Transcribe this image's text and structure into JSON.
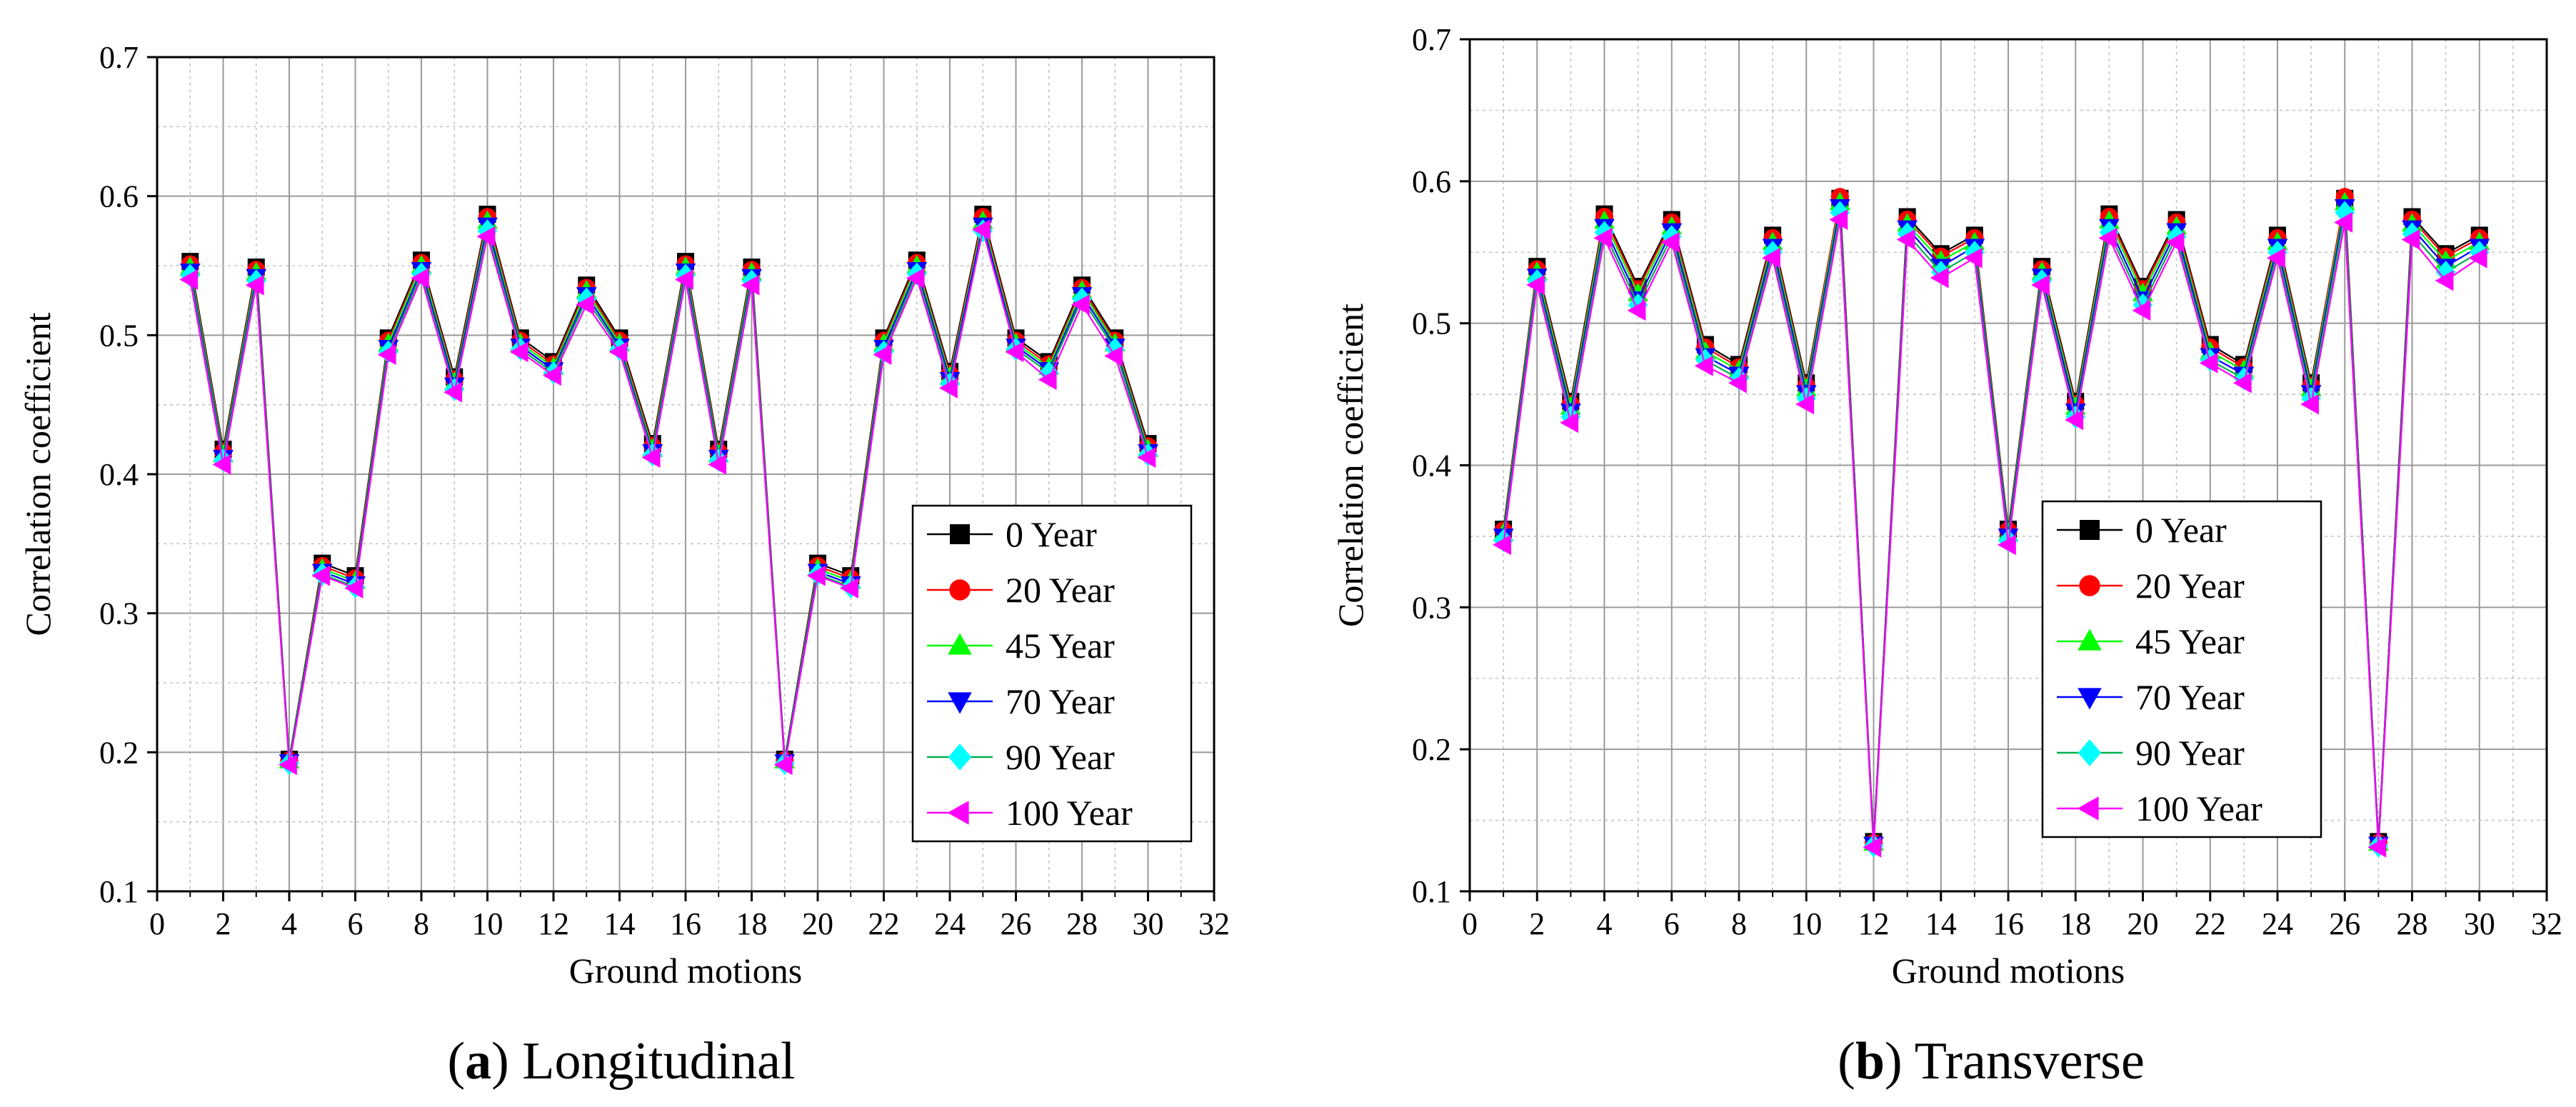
{
  "chart_data": [
    {
      "type": "line",
      "panel_label": "a",
      "caption": "Longitudinal",
      "xlabel": "Ground motions",
      "ylabel": "Correlation coefficient",
      "xlim": [
        0,
        32
      ],
      "ylim": [
        0.1,
        0.7
      ],
      "xticks": [
        0,
        2,
        4,
        6,
        8,
        10,
        12,
        14,
        16,
        18,
        20,
        22,
        24,
        26,
        28,
        30,
        32
      ],
      "yticks": [
        0.1,
        0.2,
        0.3,
        0.4,
        0.5,
        0.6,
        0.7
      ],
      "grid": true,
      "legend_position": "center-right",
      "x": [
        1,
        2,
        3,
        4,
        5,
        6,
        7,
        8,
        9,
        10,
        11,
        12,
        13,
        14,
        15,
        16,
        17,
        18,
        19,
        20,
        21,
        22,
        23,
        24,
        25,
        26,
        27,
        28,
        29,
        30
      ],
      "series": [
        {
          "name": "0 Year",
          "color": "#000000",
          "marker": "square",
          "values": [
            0.553,
            0.418,
            0.549,
            0.195,
            0.336,
            0.327,
            0.498,
            0.554,
            0.47,
            0.587,
            0.498,
            0.481,
            0.536,
            0.498,
            0.422,
            0.553,
            0.418,
            0.549,
            0.195,
            0.336,
            0.327,
            0.498,
            0.554,
            0.474,
            0.587,
            0.498,
            0.481,
            0.536,
            0.498,
            0.422
          ]
        },
        {
          "name": "20 Year",
          "color": "#ff0000",
          "marker": "circle",
          "values": [
            0.551,
            0.416,
            0.547,
            0.194,
            0.334,
            0.325,
            0.496,
            0.552,
            0.468,
            0.585,
            0.496,
            0.479,
            0.534,
            0.496,
            0.42,
            0.551,
            0.416,
            0.547,
            0.194,
            0.334,
            0.325,
            0.496,
            0.552,
            0.472,
            0.585,
            0.496,
            0.479,
            0.534,
            0.496,
            0.42
          ]
        },
        {
          "name": "45 Year",
          "color": "#00ff00",
          "marker": "triangle-up",
          "values": [
            0.549,
            0.414,
            0.545,
            0.194,
            0.332,
            0.323,
            0.494,
            0.55,
            0.466,
            0.582,
            0.494,
            0.477,
            0.532,
            0.494,
            0.418,
            0.549,
            0.414,
            0.545,
            0.194,
            0.332,
            0.323,
            0.494,
            0.55,
            0.47,
            0.582,
            0.494,
            0.477,
            0.532,
            0.494,
            0.418
          ]
        },
        {
          "name": "70 Year",
          "color": "#0000ff",
          "marker": "triangle-down",
          "values": [
            0.546,
            0.412,
            0.542,
            0.193,
            0.33,
            0.321,
            0.491,
            0.547,
            0.464,
            0.579,
            0.492,
            0.475,
            0.529,
            0.492,
            0.416,
            0.546,
            0.412,
            0.542,
            0.193,
            0.33,
            0.321,
            0.491,
            0.547,
            0.468,
            0.579,
            0.492,
            0.475,
            0.529,
            0.492,
            0.416
          ]
        },
        {
          "name": "90 Year",
          "color": "#00ffff",
          "marker": "diamond",
          "values": [
            0.543,
            0.41,
            0.539,
            0.192,
            0.328,
            0.319,
            0.488,
            0.544,
            0.461,
            0.575,
            0.49,
            0.473,
            0.526,
            0.49,
            0.414,
            0.543,
            0.41,
            0.539,
            0.192,
            0.328,
            0.319,
            0.488,
            0.544,
            0.465,
            0.575,
            0.49,
            0.473,
            0.526,
            0.49,
            0.414
          ]
        },
        {
          "name": "100 Year",
          "color": "#ff00ff",
          "marker": "triangle-left",
          "values": [
            0.54,
            0.407,
            0.536,
            0.191,
            0.327,
            0.318,
            0.486,
            0.541,
            0.459,
            0.571,
            0.488,
            0.471,
            0.522,
            0.488,
            0.412,
            0.54,
            0.407,
            0.536,
            0.191,
            0.327,
            0.318,
            0.486,
            0.541,
            0.462,
            0.576,
            0.488,
            0.468,
            0.522,
            0.485,
            0.412
          ]
        }
      ]
    },
    {
      "type": "line",
      "panel_label": "b",
      "caption": "Transverse",
      "xlabel": "Ground motions",
      "ylabel": "Correlation coefficient",
      "xlim": [
        0,
        32
      ],
      "ylim": [
        0.1,
        0.7
      ],
      "xticks": [
        0,
        2,
        4,
        6,
        8,
        10,
        12,
        14,
        16,
        18,
        20,
        22,
        24,
        26,
        28,
        30,
        32
      ],
      "yticks": [
        0.1,
        0.2,
        0.3,
        0.4,
        0.5,
        0.6,
        0.7
      ],
      "grid": true,
      "legend_position": "center-right",
      "x": [
        1,
        2,
        3,
        4,
        5,
        6,
        7,
        8,
        9,
        10,
        11,
        12,
        13,
        14,
        15,
        16,
        17,
        18,
        19,
        20,
        21,
        22,
        23,
        24,
        25,
        26,
        27,
        28,
        29,
        30
      ],
      "series": [
        {
          "name": "0 Year",
          "color": "#000000",
          "marker": "square",
          "values": [
            0.355,
            0.54,
            0.445,
            0.577,
            0.526,
            0.573,
            0.485,
            0.471,
            0.562,
            0.458,
            0.588,
            0.135,
            0.575,
            0.549,
            0.562,
            0.355,
            0.54,
            0.445,
            0.577,
            0.526,
            0.573,
            0.485,
            0.471,
            0.562,
            0.458,
            0.588,
            0.135,
            0.575,
            0.549,
            0.562
          ]
        },
        {
          "name": "20 Year",
          "color": "#ff0000",
          "marker": "circle",
          "values": [
            0.354,
            0.538,
            0.443,
            0.575,
            0.524,
            0.571,
            0.483,
            0.469,
            0.56,
            0.456,
            0.589,
            0.134,
            0.573,
            0.547,
            0.56,
            0.354,
            0.538,
            0.443,
            0.575,
            0.524,
            0.571,
            0.483,
            0.469,
            0.56,
            0.456,
            0.589,
            0.134,
            0.573,
            0.547,
            0.56
          ]
        },
        {
          "name": "45 Year",
          "color": "#00ff00",
          "marker": "triangle-up",
          "values": [
            0.352,
            0.536,
            0.441,
            0.572,
            0.521,
            0.568,
            0.48,
            0.467,
            0.557,
            0.454,
            0.585,
            0.134,
            0.57,
            0.544,
            0.557,
            0.352,
            0.536,
            0.441,
            0.572,
            0.521,
            0.568,
            0.48,
            0.467,
            0.557,
            0.454,
            0.585,
            0.134,
            0.57,
            0.544,
            0.557
          ]
        },
        {
          "name": "70 Year",
          "color": "#0000ff",
          "marker": "triangle-down",
          "values": [
            0.35,
            0.533,
            0.438,
            0.568,
            0.517,
            0.565,
            0.477,
            0.464,
            0.554,
            0.451,
            0.582,
            0.133,
            0.567,
            0.54,
            0.554,
            0.35,
            0.533,
            0.438,
            0.568,
            0.517,
            0.565,
            0.477,
            0.464,
            0.554,
            0.451,
            0.582,
            0.133,
            0.567,
            0.54,
            0.554
          ]
        },
        {
          "name": "90 Year",
          "color": "#00ffff",
          "marker": "diamond",
          "values": [
            0.347,
            0.53,
            0.434,
            0.564,
            0.513,
            0.561,
            0.474,
            0.461,
            0.55,
            0.447,
            0.578,
            0.132,
            0.563,
            0.536,
            0.55,
            0.347,
            0.53,
            0.434,
            0.564,
            0.513,
            0.561,
            0.474,
            0.461,
            0.55,
            0.447,
            0.578,
            0.132,
            0.563,
            0.536,
            0.55
          ]
        },
        {
          "name": "100 Year",
          "color": "#ff00ff",
          "marker": "triangle-left",
          "values": [
            0.344,
            0.527,
            0.43,
            0.56,
            0.509,
            0.557,
            0.47,
            0.458,
            0.546,
            0.443,
            0.573,
            0.131,
            0.559,
            0.532,
            0.546,
            0.344,
            0.527,
            0.432,
            0.56,
            0.509,
            0.557,
            0.472,
            0.458,
            0.546,
            0.443,
            0.571,
            0.131,
            0.559,
            0.53,
            0.546
          ]
        }
      ]
    }
  ]
}
